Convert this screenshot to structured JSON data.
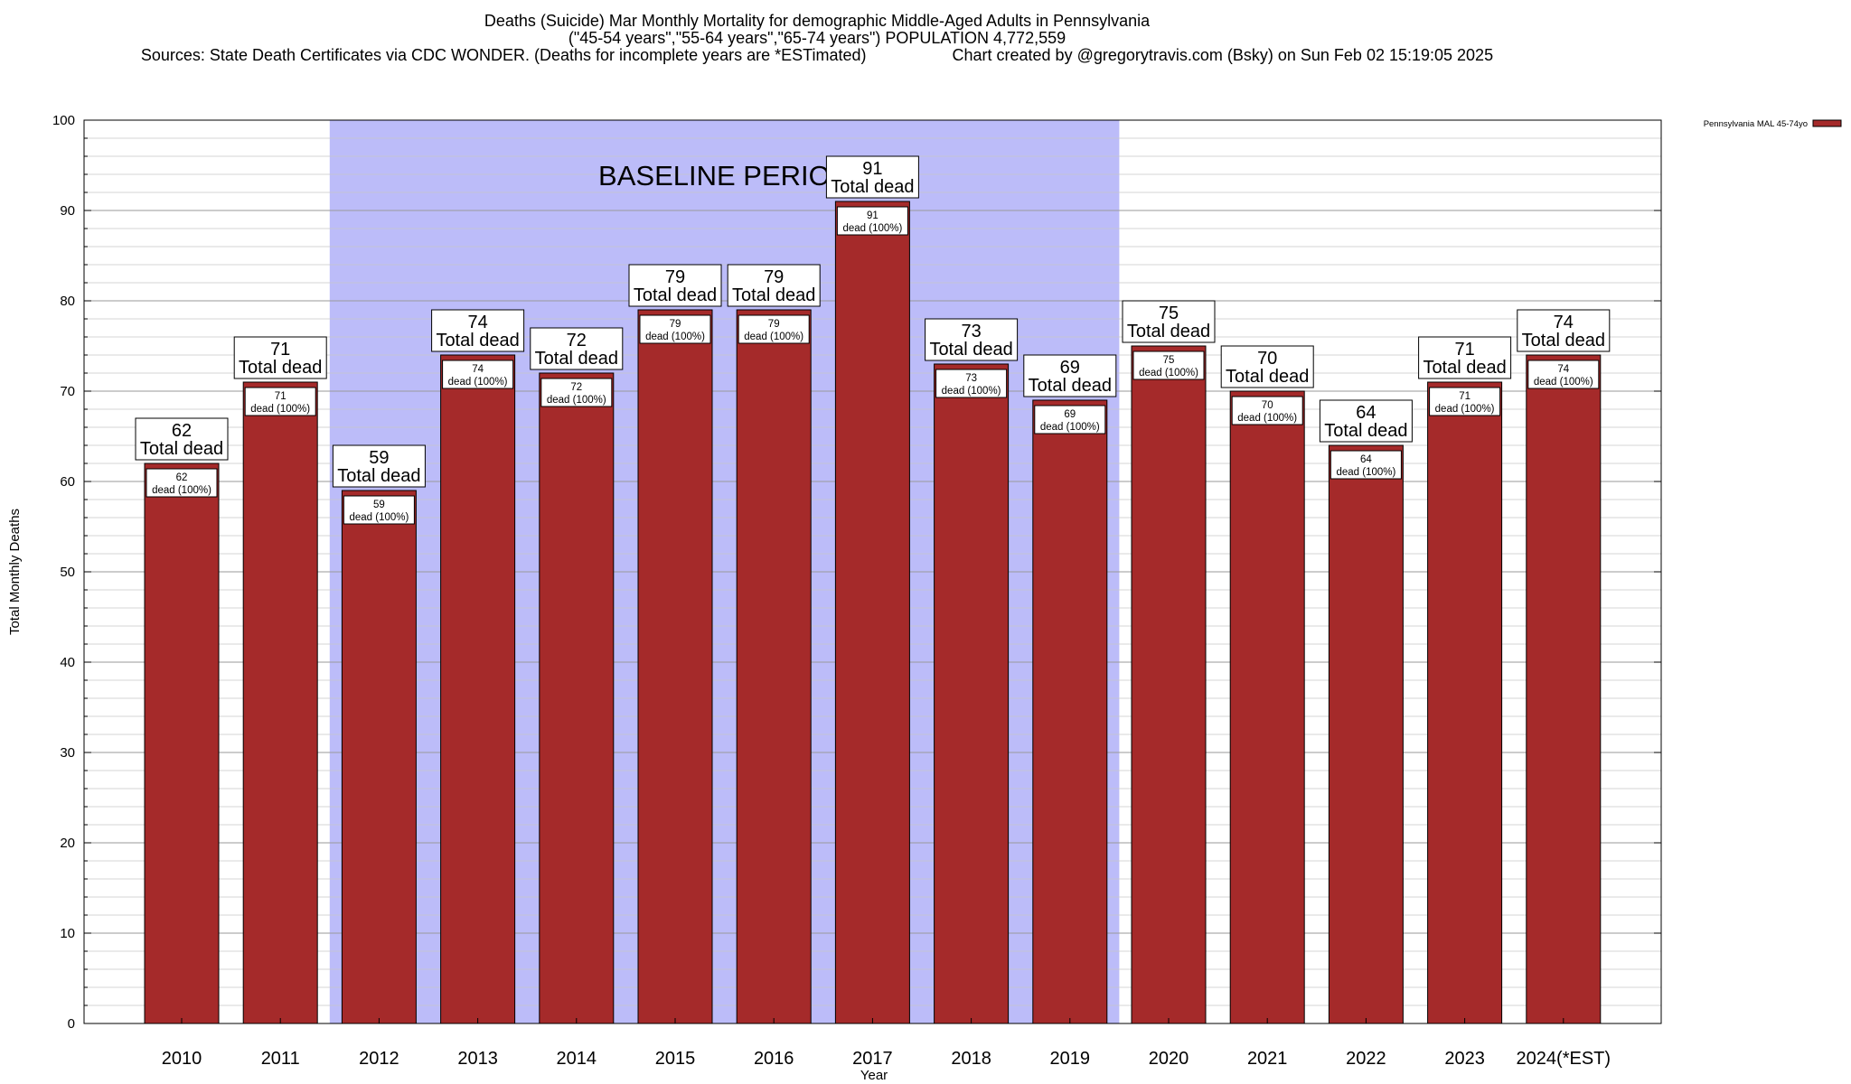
{
  "title": {
    "line1": "Deaths (Suicide) Mar Monthly Mortality for demographic Middle-Aged Adults in Pennsylvania",
    "line2": "(\"45-54 years\",\"55-64 years\",\"65-74 years\") POPULATION 4,772,559",
    "sources": "Sources: State Death Certificates via CDC WONDER. (Deaths for incomplete years are *ESTimated)",
    "credit": "Chart created by @gregorytravis.com (Bsky) on Sun Feb 02 15:19:05 2025"
  },
  "chart_data": {
    "type": "bar",
    "xlabel": "Year",
    "ylabel": "Total Monthly Deaths",
    "ylim": [
      0,
      100
    ],
    "y_ticks": [
      0,
      10,
      20,
      30,
      40,
      50,
      60,
      70,
      80,
      90,
      100
    ],
    "categories": [
      "2010",
      "2011",
      "2012",
      "2013",
      "2014",
      "2015",
      "2016",
      "2017",
      "2018",
      "2019",
      "2020",
      "2021",
      "2022",
      "2023",
      "2024(*EST)"
    ],
    "series": [
      {
        "name": "Pennsylvania MAL 45-74yo",
        "color": "#a52a2a",
        "values": [
          62,
          71,
          59,
          74,
          72,
          79,
          79,
          91,
          73,
          69,
          75,
          70,
          64,
          71,
          74
        ]
      }
    ],
    "total_label_suffix": "Total dead",
    "inner_label_suffix": "dead (100%)",
    "baseline": {
      "label": "BASELINE PERIOD",
      "from": "2012",
      "to": "2019",
      "color": "#bcbcf9"
    },
    "grid": true,
    "legend_position": "top-right"
  }
}
